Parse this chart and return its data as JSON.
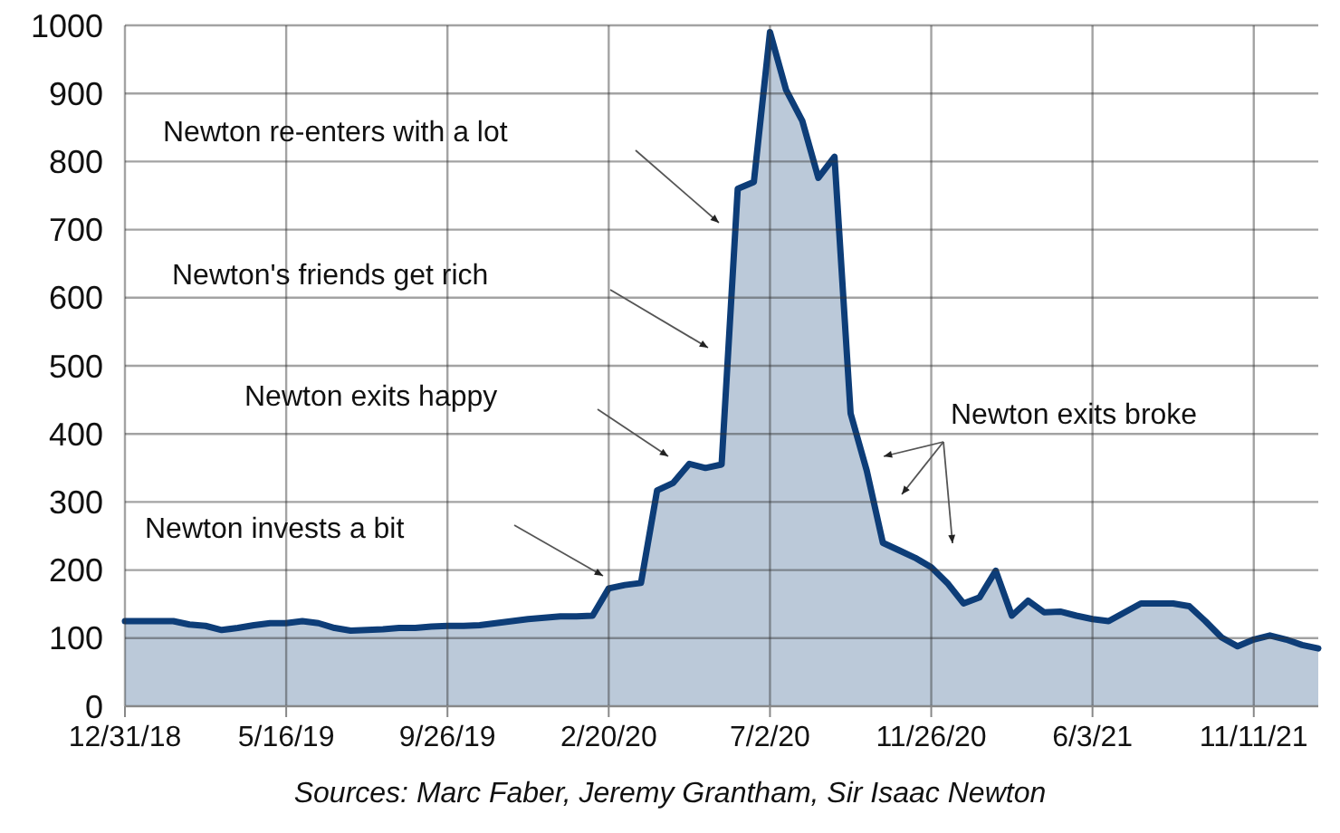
{
  "chart_data": {
    "type": "area",
    "categories": [
      "12/31/18",
      null,
      null,
      null,
      null,
      null,
      null,
      null,
      null,
      null,
      "5/16/19",
      null,
      null,
      null,
      null,
      null,
      null,
      null,
      null,
      null,
      "9/26/19",
      null,
      null,
      null,
      null,
      null,
      null,
      null,
      null,
      null,
      "2/20/20",
      null,
      null,
      null,
      null,
      null,
      null,
      null,
      null,
      null,
      "7/2/20",
      null,
      null,
      null,
      null,
      null,
      null,
      null,
      null,
      null,
      "11/26/20",
      null,
      null,
      null,
      null,
      null,
      null,
      null,
      null,
      null,
      "6/3/21",
      null,
      null,
      null,
      null,
      null,
      null,
      null,
      null,
      null,
      "11/11/21",
      null,
      null,
      null,
      null
    ],
    "series": [
      {
        "color": "#0d3d78",
        "values": [
          125,
          125,
          125,
          125,
          120,
          118,
          112,
          115,
          119,
          122,
          122,
          125,
          122,
          115,
          111,
          112,
          113,
          115,
          115,
          117,
          118,
          118,
          119,
          122,
          125,
          128,
          130,
          132,
          132,
          133,
          173,
          178,
          181,
          317,
          328,
          356,
          350,
          355,
          760,
          770,
          990,
          905,
          860,
          776,
          807,
          430,
          346,
          240,
          229,
          218,
          204,
          181,
          151,
          160,
          199,
          133,
          155,
          138,
          139,
          133,
          128,
          125,
          138,
          151,
          151,
          151,
          147,
          125,
          101,
          88,
          98,
          104,
          98,
          90,
          85
        ]
      }
    ],
    "ylim": [
      0,
      1000
    ],
    "yticks": [
      0,
      100,
      200,
      300,
      400,
      500,
      600,
      700,
      800,
      900,
      1000
    ],
    "grid": true,
    "annotations": [
      "Newton invests a bit",
      "Newton exits happy",
      "Newton's friends get rich",
      "Newton re-enters with a lot",
      "Newton exits broke",
      "Sources: Marc Faber, Jeremy Grantham, Sir Isaac Newton"
    ]
  }
}
